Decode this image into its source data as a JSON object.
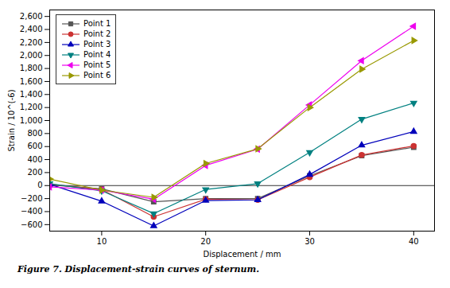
{
  "chart_data": {
    "type": "line",
    "xlabel": "Displacement / mm",
    "ylabel": "Strain / 10^(-6)",
    "caption": "Figure 7. Displacement-strain curves of sternum.",
    "x": [
      5,
      10,
      15,
      20,
      25,
      30,
      35,
      40
    ],
    "xlim": [
      5,
      42
    ],
    "xticks": [
      10,
      20,
      30,
      40
    ],
    "ylim": [
      -700,
      2700
    ],
    "yticks": [
      -600,
      -400,
      -200,
      0,
      200,
      400,
      600,
      800,
      1000,
      1200,
      1400,
      1600,
      1800,
      2000,
      2200,
      2400,
      2600
    ],
    "grid": false,
    "legend": "upper left",
    "series": [
      {
        "name": "Point 1",
        "color": "#555555",
        "marker": "square",
        "values": [
          10,
          -50,
          -250,
          -200,
          -200,
          150,
          460,
          590
        ]
      },
      {
        "name": "Point 2",
        "color": "#cc3333",
        "marker": "circle",
        "values": [
          20,
          -60,
          -480,
          -210,
          -220,
          130,
          470,
          610
        ]
      },
      {
        "name": "Point 3",
        "color": "#0000bb",
        "marker": "triangle-up",
        "values": [
          20,
          -240,
          -620,
          -230,
          -220,
          170,
          620,
          830
        ]
      },
      {
        "name": "Point 4",
        "color": "#008080",
        "marker": "triangle-down",
        "values": [
          30,
          -80,
          -430,
          -60,
          30,
          510,
          1020,
          1270
        ]
      },
      {
        "name": "Point 5",
        "color": "#ee00ee",
        "marker": "triangle-left",
        "values": [
          -20,
          -70,
          -210,
          310,
          560,
          1240,
          1920,
          2450
        ]
      },
      {
        "name": "Point 6",
        "color": "#999900",
        "marker": "triangle-right",
        "values": [
          100,
          -70,
          -180,
          340,
          565,
          1200,
          1790,
          2230
        ]
      }
    ]
  }
}
